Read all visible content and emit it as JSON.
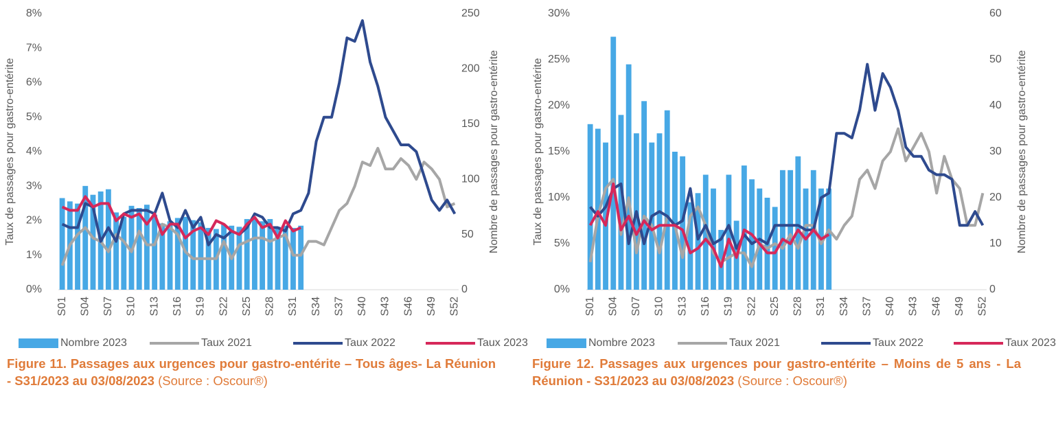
{
  "chart_data": [
    {
      "type": "bar-line",
      "caption": "Figure 11. Passages aux urgences pour gastro-entérite – Tous âges- La Réunion - S31/2023 au 03/08/2023",
      "source": "(Source : Oscour®)",
      "ylabel": "Taux de passages pour gastro-entérite",
      "y2label": "Nombre de passages pour gastro-entérite",
      "categories": [
        "S01",
        null,
        null,
        "S04",
        null,
        null,
        "S07",
        null,
        null,
        "S10",
        null,
        null,
        "S13",
        null,
        null,
        "S16",
        null,
        null,
        "S19",
        null,
        null,
        "S22",
        null,
        null,
        "S25",
        null,
        null,
        "S28",
        null,
        null,
        "S31",
        null,
        null,
        "S34",
        null,
        null,
        "S37",
        null,
        null,
        "S40",
        null,
        null,
        "S43",
        null,
        null,
        "S46",
        null,
        null,
        "S49",
        null,
        null,
        "S52"
      ],
      "ylim": [
        0,
        8
      ],
      "yticks": [
        {
          "value": 0,
          "label": "0%"
        },
        {
          "value": 1,
          "label": "1%"
        },
        {
          "value": 2,
          "label": "2%"
        },
        {
          "value": 3,
          "label": "3%"
        },
        {
          "value": 4,
          "label": "4%"
        },
        {
          "value": 5,
          "label": "5%"
        },
        {
          "value": 6,
          "label": "6%"
        },
        {
          "value": 7,
          "label": "7%"
        },
        {
          "value": 8,
          "label": "8%"
        }
      ],
      "y2lim": [
        0,
        250
      ],
      "y2ticks": [
        0,
        50,
        100,
        150,
        200,
        250
      ],
      "series": [
        {
          "name": "Nombre 2023",
          "type": "bar",
          "axis": "y2",
          "color": "#47a8e5",
          "values": [
            83,
            80,
            78,
            94,
            86,
            89,
            91,
            70,
            66,
            76,
            74,
            77,
            68,
            60,
            62,
            65,
            66,
            63,
            61,
            56,
            55,
            59,
            58,
            57,
            64,
            64,
            62,
            64,
            57,
            58,
            56,
            58,
            null,
            null,
            null,
            null,
            null,
            null,
            null,
            null,
            null,
            null,
            null,
            null,
            null,
            null,
            null,
            null,
            null,
            null,
            null,
            null
          ]
        },
        {
          "name": "Taux 2021",
          "type": "line",
          "color": "#a6a6a6",
          "values": [
            0.7,
            1.3,
            1.6,
            1.8,
            1.5,
            1.4,
            1.1,
            1.6,
            1.4,
            1.1,
            1.7,
            1.3,
            1.3,
            1.9,
            1.8,
            1.6,
            1.1,
            0.9,
            0.9,
            0.9,
            0.9,
            1.4,
            0.9,
            1.3,
            1.4,
            1.5,
            1.5,
            1.4,
            1.5,
            1.6,
            1.0,
            1.0,
            1.4,
            1.4,
            1.3,
            1.8,
            2.3,
            2.5,
            3.0,
            3.7,
            3.6,
            4.1,
            3.5,
            3.5,
            3.8,
            3.6,
            3.2,
            3.7,
            3.5,
            3.2,
            2.4,
            2.5
          ]
        },
        {
          "name": "Taux 2022",
          "type": "line",
          "color": "#2e4a8e",
          "values": [
            1.9,
            1.8,
            1.8,
            2.5,
            2.4,
            1.4,
            1.8,
            1.4,
            2.2,
            2.3,
            2.3,
            2.3,
            2.2,
            2.8,
            2.0,
            1.8,
            2.3,
            1.8,
            2.1,
            1.3,
            1.6,
            1.5,
            1.7,
            1.6,
            1.8,
            2.2,
            2.1,
            1.8,
            1.8,
            1.7,
            2.2,
            2.3,
            2.8,
            4.3,
            5.0,
            5.0,
            6.0,
            7.3,
            7.2,
            7.8,
            6.6,
            5.9,
            5.0,
            4.6,
            4.2,
            4.2,
            4.0,
            3.3,
            2.6,
            2.3,
            2.6,
            2.2
          ]
        },
        {
          "name": "Taux 2023",
          "type": "line",
          "color": "#d6285a",
          "values": [
            2.4,
            2.3,
            2.3,
            2.7,
            2.4,
            2.5,
            2.5,
            2.0,
            2.2,
            2.1,
            2.2,
            1.9,
            2.2,
            1.6,
            1.9,
            1.9,
            1.5,
            1.7,
            1.8,
            1.6,
            2.0,
            1.9,
            1.7,
            1.6,
            1.9,
            2.1,
            1.8,
            1.9,
            1.5,
            2.0,
            1.7,
            1.8,
            null,
            null,
            null,
            null,
            null,
            null,
            null,
            null,
            null,
            null,
            null,
            null,
            null,
            null,
            null,
            null,
            null,
            null,
            null,
            null
          ]
        }
      ]
    },
    {
      "type": "bar-line",
      "caption": "Figure 12. Passages aux urgences pour gastro-entérite  – Moins de 5 ans - La Réunion - S31/2023 au 03/08/2023",
      "source": "(Source : Oscour®)",
      "ylabel": "Taux de passages pour gastro-entérite",
      "y2label": "Nombre de passages pour gastro-entérite",
      "categories": [
        "S01",
        null,
        null,
        "S04",
        null,
        null,
        "S07",
        null,
        null,
        "S10",
        null,
        null,
        "S13",
        null,
        null,
        "S16",
        null,
        null,
        "S19",
        null,
        null,
        "S22",
        null,
        null,
        "S25",
        null,
        null,
        "S28",
        null,
        null,
        "S31",
        null,
        null,
        "S34",
        null,
        null,
        "S37",
        null,
        null,
        "S40",
        null,
        null,
        "S43",
        null,
        null,
        "S46",
        null,
        null,
        "S49",
        null,
        null,
        "S52"
      ],
      "ylim": [
        0,
        30
      ],
      "yticks": [
        {
          "value": 0,
          "label": "0%"
        },
        {
          "value": 5,
          "label": "5%"
        },
        {
          "value": 10,
          "label": "10%"
        },
        {
          "value": 15,
          "label": "15%"
        },
        {
          "value": 20,
          "label": "20%"
        },
        {
          "value": 25,
          "label": "25%"
        },
        {
          "value": 30,
          "label": "30%"
        }
      ],
      "y2lim": [
        0,
        60
      ],
      "y2ticks": [
        0,
        10,
        20,
        30,
        40,
        50,
        60
      ],
      "series": [
        {
          "name": "Nombre 2023",
          "type": "bar",
          "axis": "y2",
          "color": "#47a8e5",
          "values": [
            36,
            35,
            32,
            55,
            38,
            49,
            34,
            41,
            32,
            34,
            39,
            30,
            29,
            19,
            21,
            25,
            22,
            13,
            25,
            15,
            27,
            24,
            22,
            20,
            18,
            26,
            26,
            29,
            22,
            26,
            22,
            22,
            null,
            null,
            null,
            null,
            null,
            null,
            null,
            null,
            null,
            null,
            null,
            null,
            null,
            null,
            null,
            null,
            null,
            null,
            null,
            null
          ]
        },
        {
          "name": "Taux 2021",
          "type": "line",
          "color": "#a6a6a6",
          "values": [
            3,
            8,
            11,
            12,
            6,
            10,
            4,
            8,
            7,
            4,
            8,
            7,
            3.5,
            8,
            9,
            7,
            4,
            3,
            3.5,
            4,
            4,
            2.5,
            5,
            4.5,
            5,
            4.5,
            6,
            4.5,
            7,
            7,
            5,
            6.5,
            5.5,
            7,
            8,
            12,
            13,
            11,
            14,
            15,
            17.5,
            14,
            15.5,
            17,
            15,
            10.5,
            14.5,
            12,
            11,
            7,
            7,
            10.5
          ]
        },
        {
          "name": "Taux 2022",
          "type": "line",
          "color": "#2e4a8e",
          "values": [
            9,
            8,
            9,
            11,
            11.5,
            5,
            8.5,
            5,
            8,
            8.5,
            8,
            7,
            7.5,
            11,
            5.5,
            7,
            5,
            5.5,
            7,
            4.5,
            6,
            5,
            5.5,
            5,
            7,
            7,
            7,
            7,
            6.5,
            6.5,
            10,
            10.5,
            17,
            17,
            16.5,
            19.5,
            24.5,
            19.5,
            23.5,
            22,
            19.5,
            15.5,
            14.5,
            14.5,
            13,
            12.5,
            12.5,
            12,
            7,
            7,
            8.5,
            7
          ]
        },
        {
          "name": "Taux 2023",
          "type": "line",
          "color": "#d6285a",
          "values": [
            7,
            8.5,
            7,
            11.5,
            6.5,
            8,
            6,
            7.5,
            6.5,
            7,
            7,
            7,
            6.5,
            4,
            4.5,
            5.5,
            4.5,
            2.5,
            5.5,
            3.5,
            6.5,
            6,
            5,
            4,
            4,
            5.5,
            5,
            6.5,
            5.5,
            6.5,
            5.5,
            6,
            null,
            null,
            null,
            null,
            null,
            null,
            null,
            null,
            null,
            null,
            null,
            null,
            null,
            null,
            null,
            null,
            null,
            null,
            null,
            null
          ]
        }
      ]
    }
  ]
}
